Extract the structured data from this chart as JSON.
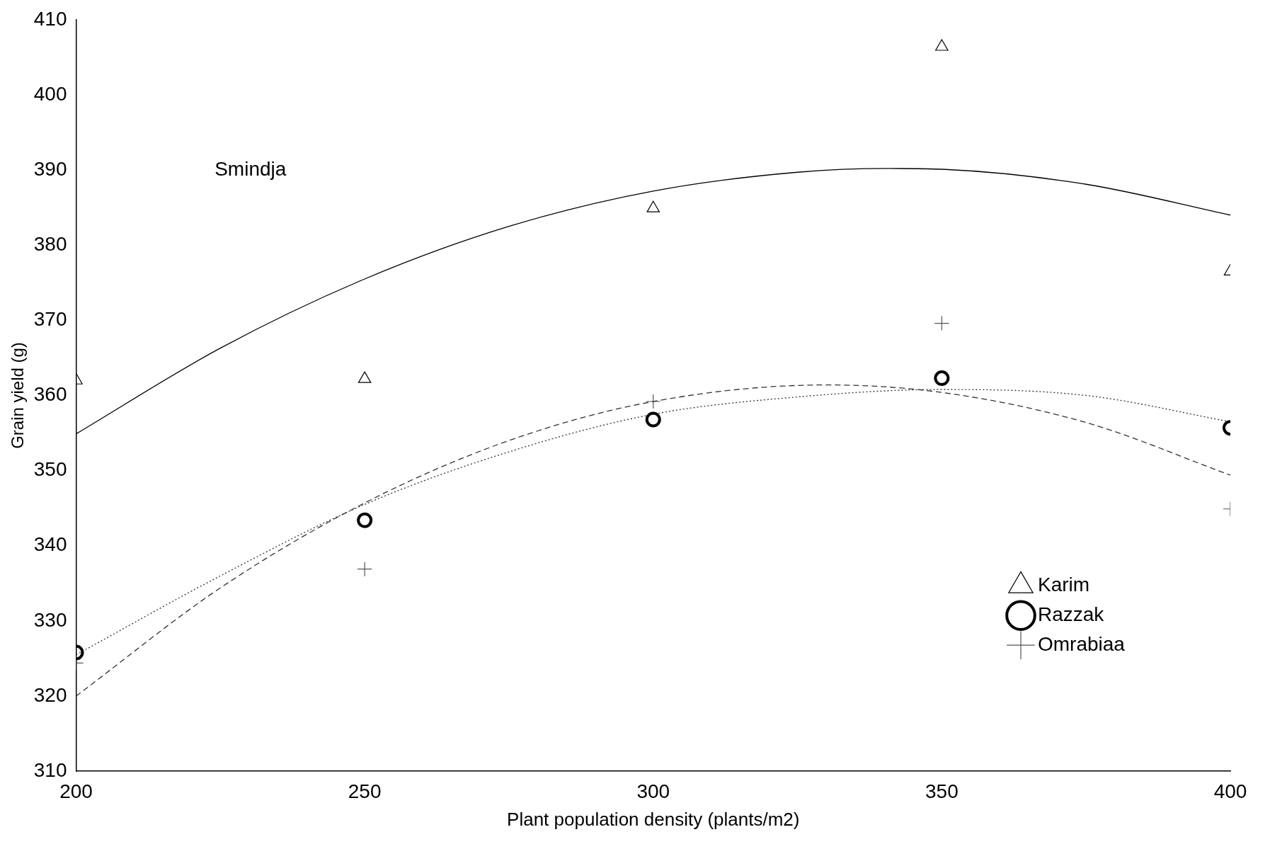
{
  "chart_data": {
    "type": "scatter",
    "xlabel": "Plant population density (plants/m2)",
    "ylabel": "Grain yield (g)",
    "xlim": [
      200,
      400
    ],
    "xticks": [
      200,
      250,
      300,
      350,
      400
    ],
    "ylim": [
      310,
      410
    ],
    "yticks": [
      310,
      320,
      330,
      340,
      350,
      360,
      370,
      380,
      390,
      400,
      410
    ],
    "grid": false,
    "legend": "bottom right",
    "annotations": [
      "Smindja"
    ],
    "series": [
      {
        "name": "Karim",
        "color": "#000000",
        "marker": "triangle",
        "x": [
          200,
          250,
          300,
          350,
          400
        ],
        "values": [
          362,
          362.2,
          384.9,
          406.4,
          376.5
        ]
      },
      {
        "name": "Razzak",
        "color": "#000000",
        "marker": "circle",
        "x": [
          200,
          250,
          300,
          350,
          400
        ],
        "values": [
          325.8,
          343.4,
          356.8,
          362.3,
          355.7
        ]
      },
      {
        "name": "Omrabiaa",
        "color": "#555555",
        "marker": "cross",
        "x": [
          200,
          250,
          300,
          350,
          400
        ],
        "values": [
          324.4,
          336.9,
          359.2,
          369.6,
          344.9
        ]
      },
      {
        "type": "line",
        "color": "#000000",
        "line_style": "solid",
        "x": [
          200,
          225,
          250,
          275,
          300,
          325,
          341,
          350,
          375,
          400
        ],
        "values": [
          354.9,
          366.3,
          375.5,
          382.5,
          387.2,
          389.7,
          390.2,
          390.1,
          388.1,
          384
        ]
      },
      {
        "type": "line",
        "color": "#333333",
        "line_style": "dashed",
        "x": [
          200,
          225,
          250,
          275,
          300,
          330,
          350,
          375,
          400
        ],
        "values": [
          320,
          334.4,
          345.7,
          354,
          359.2,
          361.4,
          360.4,
          356.4,
          349.4
        ]
      },
      {
        "type": "line",
        "color": "#333333",
        "line_style": "dotted",
        "x": [
          200,
          225,
          250,
          275,
          300,
          325,
          350,
          375,
          400
        ],
        "values": [
          325.5,
          336,
          345.5,
          352.5,
          357.5,
          359.8,
          360.8,
          360,
          356.5
        ]
      }
    ]
  }
}
